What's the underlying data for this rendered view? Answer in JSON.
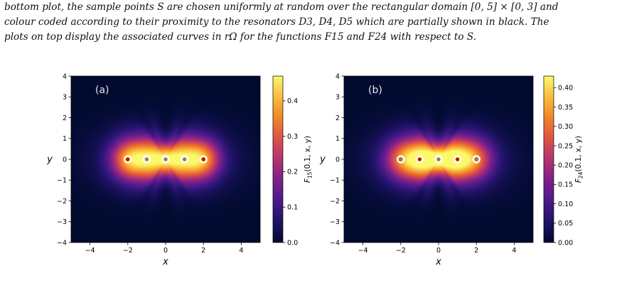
{
  "caption": {
    "line1": "bottom plot, the sample points S are chosen uniformly at random over the rectangular domain [0, 5] × [0, 3] and",
    "line2": "colour coded according to their proximity to the resonators D3, D4, D5 which are partially shown in black. The",
    "line3": "plots on top display the associated curves in rΩ for the functions F15 and F24 with respect to S."
  },
  "chart_data": [
    {
      "type": "heatmap",
      "panel_label": "(a)",
      "xlabel": "x",
      "ylabel": "y",
      "xlim": [
        -5,
        5
      ],
      "ylim": [
        -4,
        4
      ],
      "xticks": [
        -4,
        -2,
        0,
        2,
        4
      ],
      "yticks": [
        -4,
        -3,
        -2,
        -1,
        0,
        1,
        2,
        3,
        4
      ],
      "colorbar_label": "F15(0.1, x, y)",
      "colorbar_range": [
        0,
        0.47
      ],
      "colorbar_ticks": [
        0.0,
        0.1,
        0.2,
        0.3,
        0.4
      ],
      "resonators": [
        {
          "x": -2,
          "y": 0,
          "center": "red"
        },
        {
          "x": -1,
          "y": 0,
          "center": "grey"
        },
        {
          "x": 0,
          "y": 0,
          "center": "grey"
        },
        {
          "x": 1,
          "y": 0,
          "center": "grey"
        },
        {
          "x": 2,
          "y": 0,
          "center": "red"
        }
      ]
    },
    {
      "type": "heatmap",
      "panel_label": "(b)",
      "xlabel": "x",
      "ylabel": "y",
      "xlim": [
        -5,
        5
      ],
      "ylim": [
        -4,
        4
      ],
      "xticks": [
        -4,
        -2,
        0,
        2,
        4
      ],
      "yticks": [
        -4,
        -3,
        -2,
        -1,
        0,
        1,
        2,
        3,
        4
      ],
      "colorbar_label": "F24(0.1, x, y)",
      "colorbar_range": [
        0,
        0.43
      ],
      "colorbar_ticks": [
        0.0,
        0.05,
        0.1,
        0.15,
        0.2,
        0.25,
        0.3,
        0.35,
        0.4
      ],
      "resonators": [
        {
          "x": -2,
          "y": 0,
          "center": "grey"
        },
        {
          "x": -1,
          "y": 0,
          "center": "red"
        },
        {
          "x": 0,
          "y": 0,
          "center": "grey"
        },
        {
          "x": 1,
          "y": 0,
          "center": "red"
        },
        {
          "x": 2,
          "y": 0,
          "center": "grey"
        }
      ]
    }
  ],
  "colors": {
    "cmap": [
      "#000a2e",
      "#1f1366",
      "#4a1a8a",
      "#7d2189",
      "#b23372",
      "#de5247",
      "#f28528",
      "#f9bd3d",
      "#fcf86c"
    ],
    "red_dot": "#d40000",
    "grey_dot": "#7a7f8a",
    "ring": "#ffffff"
  }
}
